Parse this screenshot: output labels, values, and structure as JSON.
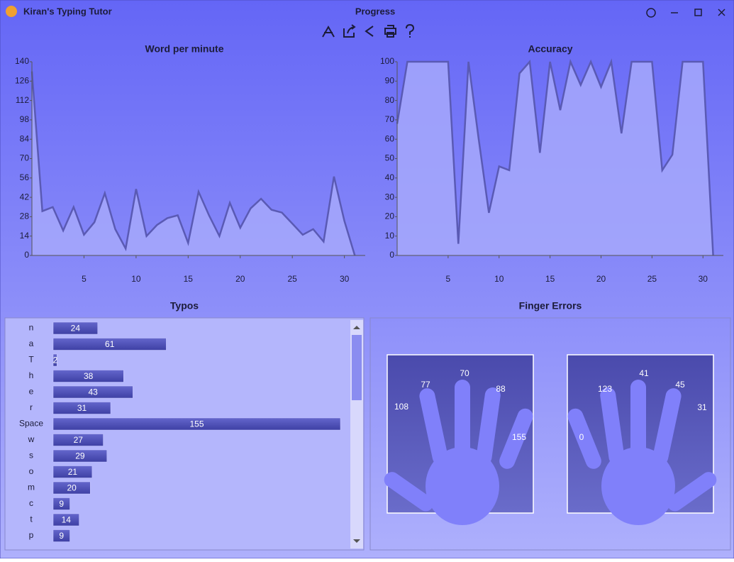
{
  "window": {
    "app_title": "Kiran's Typing Tutor",
    "title": "Progress"
  },
  "chart_data": [
    {
      "type": "area",
      "title": "Word per minute",
      "x": [
        0,
        1,
        2,
        3,
        4,
        5,
        6,
        7,
        8,
        9,
        10,
        11,
        12,
        13,
        14,
        15,
        16,
        17,
        18,
        19,
        20,
        21,
        22,
        23,
        24,
        25,
        26,
        27,
        28,
        29,
        30,
        31
      ],
      "values": [
        133,
        32,
        35,
        18,
        35,
        15,
        24,
        45,
        19,
        5,
        48,
        14,
        22,
        27,
        29,
        9,
        46,
        29,
        14,
        38,
        20,
        34,
        41,
        33,
        31,
        23,
        15,
        19,
        10,
        57,
        25,
        0
      ],
      "xlim": [
        0,
        32
      ],
      "xticks": [
        5,
        10,
        15,
        20,
        25,
        30
      ],
      "ylim": [
        0,
        140
      ],
      "yticks": [
        0,
        14,
        28,
        42,
        56,
        70,
        84,
        98,
        112,
        126,
        140
      ],
      "color": "#5a5ab4"
    },
    {
      "type": "area",
      "title": "Accuracy",
      "x": [
        0,
        1,
        2,
        3,
        4,
        5,
        6,
        7,
        8,
        9,
        10,
        11,
        12,
        13,
        14,
        15,
        16,
        17,
        18,
        19,
        20,
        21,
        22,
        23,
        24,
        25,
        26,
        27,
        28,
        29,
        30,
        31
      ],
      "values": [
        68,
        100,
        100,
        100,
        100,
        100,
        6,
        100,
        60,
        22,
        46,
        44,
        94,
        100,
        53,
        100,
        75,
        100,
        88,
        100,
        87,
        100,
        63,
        100,
        100,
        100,
        44,
        52,
        100,
        100,
        100,
        0
      ],
      "xlim": [
        0,
        32
      ],
      "xticks": [
        5,
        10,
        15,
        20,
        25,
        30
      ],
      "ylim": [
        0,
        100
      ],
      "yticks": [
        0,
        10,
        20,
        30,
        40,
        50,
        60,
        70,
        80,
        90,
        100
      ],
      "color": "#5a5ab4"
    },
    {
      "type": "hbar",
      "title": "Typos",
      "categories": [
        "n",
        "a",
        "T",
        "h",
        "e",
        "r",
        "Space",
        "w",
        "s",
        "o",
        "m",
        "c",
        "t",
        "p"
      ],
      "values": [
        24,
        61,
        2,
        38,
        43,
        31,
        155,
        27,
        29,
        21,
        20,
        9,
        14,
        9
      ],
      "color": "#4c4eb4"
    }
  ],
  "finger_errors": {
    "title": "Finger Errors",
    "left_hand": [
      108,
      77,
      70,
      88,
      155
    ],
    "right_hand": [
      0,
      123,
      41,
      45,
      31
    ]
  }
}
